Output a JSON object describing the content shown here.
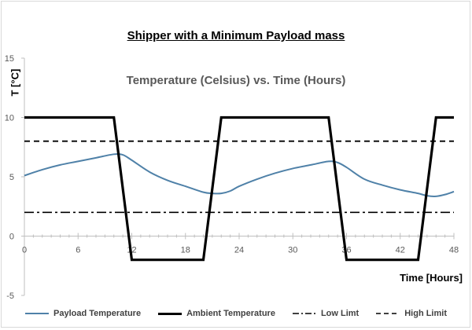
{
  "chart_data": {
    "type": "line",
    "title": "Shipper with a Minimum Payload mass",
    "subtitle": "Temperature (Celsius) vs. Time (Hours)",
    "xlabel": "Time [Hours]",
    "ylabel": "T [°C]",
    "xlim": [
      0,
      48
    ],
    "ylim": [
      -5,
      15
    ],
    "xticks": [
      0,
      6,
      12,
      18,
      24,
      30,
      36,
      42,
      48
    ],
    "yticks": [
      -5,
      0,
      5,
      10,
      15
    ],
    "series": [
      {
        "name": "Payload Temperature",
        "color": "#4f81a8",
        "style": "solid",
        "points": [
          [
            0,
            5.1
          ],
          [
            2,
            5.6
          ],
          [
            4,
            6.0
          ],
          [
            6,
            6.3
          ],
          [
            8,
            6.6
          ],
          [
            10,
            6.9
          ],
          [
            11,
            6.85
          ],
          [
            12,
            6.4
          ],
          [
            14,
            5.4
          ],
          [
            16,
            4.7
          ],
          [
            18,
            4.2
          ],
          [
            20,
            3.7
          ],
          [
            21,
            3.6
          ],
          [
            22,
            3.6
          ],
          [
            23,
            3.8
          ],
          [
            24,
            4.2
          ],
          [
            26,
            4.8
          ],
          [
            28,
            5.3
          ],
          [
            30,
            5.7
          ],
          [
            32,
            6.0
          ],
          [
            34,
            6.3
          ],
          [
            35,
            6.2
          ],
          [
            36,
            5.8
          ],
          [
            38,
            4.8
          ],
          [
            40,
            4.3
          ],
          [
            42,
            3.9
          ],
          [
            44,
            3.6
          ],
          [
            45,
            3.4
          ],
          [
            46,
            3.35
          ],
          [
            47,
            3.5
          ],
          [
            48,
            3.75
          ]
        ]
      },
      {
        "name": "Ambient Temperature",
        "color": "#000000",
        "style": "thick",
        "points": [
          [
            0,
            10
          ],
          [
            10,
            10
          ],
          [
            12,
            -2
          ],
          [
            20,
            -2
          ],
          [
            22,
            10
          ],
          [
            34,
            10
          ],
          [
            36,
            -2
          ],
          [
            44,
            -2
          ],
          [
            46,
            10
          ],
          [
            48,
            10
          ]
        ]
      },
      {
        "name": "Low Limt",
        "color": "#000000",
        "style": "dashdot",
        "points": [
          [
            0,
            2
          ],
          [
            48,
            2
          ]
        ]
      },
      {
        "name": "High Limit",
        "color": "#000000",
        "style": "dashed",
        "points": [
          [
            0,
            8
          ],
          [
            48,
            8
          ]
        ]
      }
    ]
  }
}
